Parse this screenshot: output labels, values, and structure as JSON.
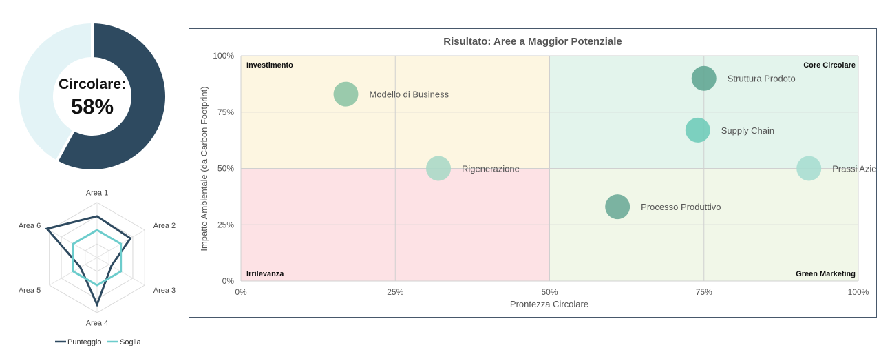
{
  "chart_data": [
    {
      "type": "pie",
      "subtype": "donut",
      "center_label": "Circolare:",
      "center_value": "58%",
      "values": [
        58,
        42
      ],
      "colors": [
        "#2e4a60",
        "#e3f3f6"
      ]
    },
    {
      "type": "radar",
      "categories": [
        "Area 1",
        "Area 2",
        "Area 3",
        "Area 4",
        "Area 5",
        "Area 6"
      ],
      "series": [
        {
          "name": "Punteggio",
          "color": "#2e4a60",
          "values": [
            0.75,
            0.7,
            0.3,
            0.85,
            0.35,
            1.05
          ]
        },
        {
          "name": "Soglia",
          "color": "#6ccccc",
          "values": [
            0.5,
            0.5,
            0.5,
            0.5,
            0.5,
            0.5
          ]
        }
      ],
      "legend_position": "bottom"
    },
    {
      "type": "scatter",
      "subtype": "bubble",
      "title": "Risultato: Aree  a Maggior Potenziale",
      "xlabel": "Prontezza Circolare",
      "ylabel": "Impatto Ambientale (da Carbon Footprint)",
      "xlim": [
        0,
        100
      ],
      "ylim": [
        0,
        100
      ],
      "xticks": [
        "0%",
        "25%",
        "50%",
        "75%",
        "100%"
      ],
      "yticks": [
        "0%",
        "25%",
        "50%",
        "75%",
        "100%"
      ],
      "grid": true,
      "quadrants": [
        {
          "label": "Investimento",
          "corner": "top-left",
          "color": "#fdf6e1"
        },
        {
          "label": "Core Circolare",
          "corner": "top-right",
          "color": "#e3f4ec"
        },
        {
          "label": "Irrilevanza",
          "corner": "bottom-left",
          "color": "#fde2e5"
        },
        {
          "label": "Green Marketing",
          "corner": "bottom-right",
          "color": "#f1f7e8"
        }
      ],
      "points": [
        {
          "label": "Modello di Business",
          "x": 17,
          "y": 83,
          "color": "#8cc4a4"
        },
        {
          "label": "Struttura Prodoto",
          "x": 75,
          "y": 90,
          "color": "#5fa592"
        },
        {
          "label": "Supply Chain",
          "x": 74,
          "y": 67,
          "color": "#6dcbb8"
        },
        {
          "label": "Rigenerazione",
          "x": 32,
          "y": 50,
          "color": "#a8d8c6"
        },
        {
          "label": "Prassi Aziendale",
          "x": 92,
          "y": 50,
          "color": "#a6ddd0"
        },
        {
          "label": "Processo Produttivo",
          "x": 61,
          "y": 33,
          "color": "#6aaa96"
        }
      ]
    }
  ]
}
